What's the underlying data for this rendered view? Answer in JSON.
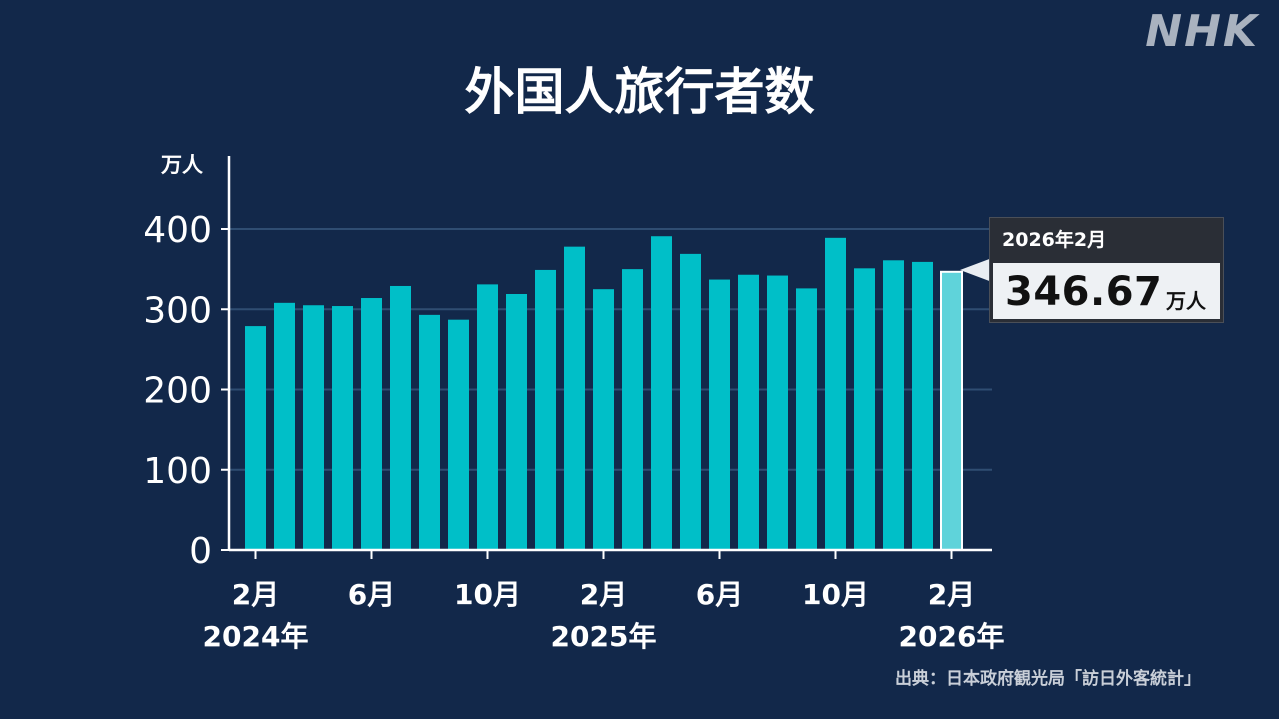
{
  "brand": {
    "logo_text": "NHK"
  },
  "title": "外国人旅行者数",
  "y_unit": "万人",
  "source": "出典：日本政府観光局「訪日外客統計」",
  "callout": {
    "label": "2026年2月",
    "value": "346.67",
    "unit": "万人"
  },
  "colors": {
    "background": "#12284a",
    "bar": "#00bfc8",
    "highlight_bar": "#5fd3da",
    "axis": "#ffffff",
    "grid": "#2f4d72"
  },
  "chart_data": {
    "type": "bar",
    "title": "外国人旅行者数",
    "ylabel": "万人",
    "ylim": [
      0,
      400
    ],
    "yticks": [
      0,
      100,
      200,
      300,
      400
    ],
    "grid": true,
    "categories": [
      "2024-02",
      "2024-03",
      "2024-04",
      "2024-05",
      "2024-06",
      "2024-07",
      "2024-08",
      "2024-09",
      "2024-10",
      "2024-11",
      "2024-12",
      "2025-01",
      "2025-02",
      "2025-03",
      "2025-04",
      "2025-05",
      "2025-06",
      "2025-07",
      "2025-08",
      "2025-09",
      "2025-10",
      "2025-11",
      "2025-12",
      "2026-01",
      "2026-02"
    ],
    "values": [
      279,
      308,
      305,
      304,
      314,
      329,
      293,
      287,
      331,
      319,
      349,
      378,
      325,
      350,
      391,
      369,
      337,
      343,
      342,
      326,
      389,
      351,
      361,
      359,
      346.67
    ],
    "highlight_index": 24,
    "x_tick_labels": [
      {
        "index": 0,
        "month": "2月",
        "year": "2024年"
      },
      {
        "index": 4,
        "month": "6月",
        "year": ""
      },
      {
        "index": 8,
        "month": "10月",
        "year": ""
      },
      {
        "index": 12,
        "month": "2月",
        "year": "2025年"
      },
      {
        "index": 16,
        "month": "6月",
        "year": ""
      },
      {
        "index": 20,
        "month": "10月",
        "year": ""
      },
      {
        "index": 24,
        "month": "2月",
        "year": "2026年"
      }
    ]
  }
}
